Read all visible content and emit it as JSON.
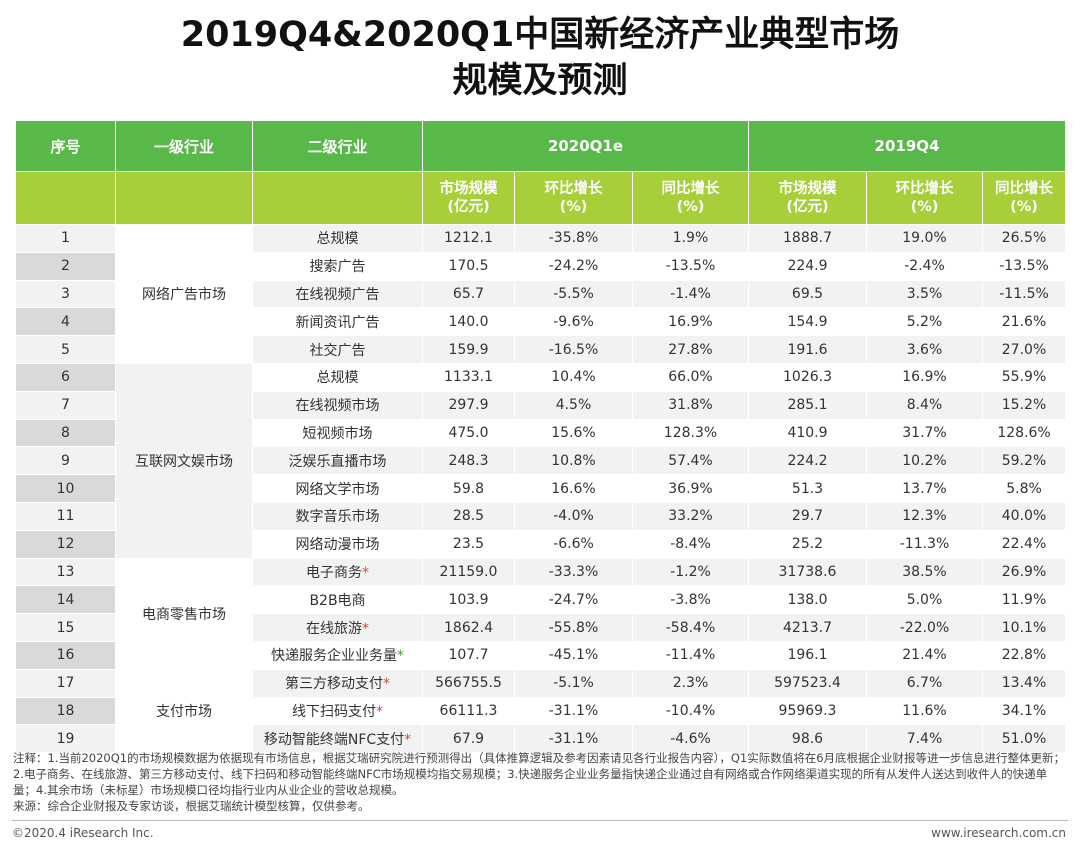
{
  "title": {
    "line1": "2019Q4&2020Q1中国新经济产业典型市场",
    "line2": "规模及预测"
  },
  "header": {
    "col_index": "序号",
    "col_level1": "一级行业",
    "col_level2": "二级行业",
    "group_2020": "2020Q1e",
    "group_2019": "2019Q4",
    "size_l1": "市场规模",
    "size_l2": "(亿元)",
    "qoq_l1": "环比增长",
    "qoq_l2": "(%)",
    "yoy_l1": "同比增长",
    "yoy_l2": "(%)"
  },
  "rows": [
    {
      "idx": "1",
      "level1": "网络广告市场",
      "level2": "总规模",
      "star": "",
      "s20": "1212.1",
      "q20": "-35.8%",
      "y20": "1.9%",
      "s19": "1888.7",
      "q19": "19.0%",
      "y19": "26.5%"
    },
    {
      "idx": "2",
      "level1": "",
      "level2": "搜索广告",
      "star": "",
      "s20": "170.5",
      "q20": "-24.2%",
      "y20": "-13.5%",
      "s19": "224.9",
      "q19": "-2.4%",
      "y19": "-13.5%"
    },
    {
      "idx": "3",
      "level1": "",
      "level2": "在线视频广告",
      "star": "",
      "s20": "65.7",
      "q20": "-5.5%",
      "y20": "-1.4%",
      "s19": "69.5",
      "q19": "3.5%",
      "y19": "-11.5%"
    },
    {
      "idx": "4",
      "level1": "",
      "level2": "新闻资讯广告",
      "star": "",
      "s20": "140.0",
      "q20": "-9.6%",
      "y20": "16.9%",
      "s19": "154.9",
      "q19": "5.2%",
      "y19": "21.6%"
    },
    {
      "idx": "5",
      "level1": "",
      "level2": "社交广告",
      "star": "",
      "s20": "159.9",
      "q20": "-16.5%",
      "y20": "27.8%",
      "s19": "191.6",
      "q19": "3.6%",
      "y19": "27.0%"
    },
    {
      "idx": "6",
      "level1": "互联网文娱市场",
      "level2": "总规模",
      "star": "",
      "s20": "1133.1",
      "q20": "10.4%",
      "y20": "66.0%",
      "s19": "1026.3",
      "q19": "16.9%",
      "y19": "55.9%"
    },
    {
      "idx": "7",
      "level1": "",
      "level2": "在线视频市场",
      "star": "",
      "s20": "297.9",
      "q20": "4.5%",
      "y20": "31.8%",
      "s19": "285.1",
      "q19": "8.4%",
      "y19": "15.2%"
    },
    {
      "idx": "8",
      "level1": "",
      "level2": "短视频市场",
      "star": "",
      "s20": "475.0",
      "q20": "15.6%",
      "y20": "128.3%",
      "s19": "410.9",
      "q19": "31.7%",
      "y19": "128.6%"
    },
    {
      "idx": "9",
      "level1": "",
      "level2": "泛娱乐直播市场",
      "star": "",
      "s20": "248.3",
      "q20": "10.8%",
      "y20": "57.4%",
      "s19": "224.2",
      "q19": "10.2%",
      "y19": "59.2%"
    },
    {
      "idx": "10",
      "level1": "",
      "level2": "网络文学市场",
      "star": "",
      "s20": "59.8",
      "q20": "16.6%",
      "y20": "36.9%",
      "s19": "51.3",
      "q19": "13.7%",
      "y19": "5.8%"
    },
    {
      "idx": "11",
      "level1": "",
      "level2": "数字音乐市场",
      "star": "",
      "s20": "28.5",
      "q20": "-4.0%",
      "y20": "33.2%",
      "s19": "29.7",
      "q19": "12.3%",
      "y19": "40.0%"
    },
    {
      "idx": "12",
      "level1": "",
      "level2": "网络动漫市场",
      "star": "",
      "s20": "23.5",
      "q20": "-6.6%",
      "y20": "-8.4%",
      "s19": "25.2",
      "q19": "-11.3%",
      "y19": "22.4%"
    },
    {
      "idx": "13",
      "level1": "电商零售市场",
      "level2": "电子商务",
      "star": "red",
      "s20": "21159.0",
      "q20": "-33.3%",
      "y20": "-1.2%",
      "s19": "31738.6",
      "q19": "38.5%",
      "y19": "26.9%"
    },
    {
      "idx": "14",
      "level1": "",
      "level2": "B2B电商",
      "star": "",
      "s20": "103.9",
      "q20": "-24.7%",
      "y20": "-3.8%",
      "s19": "138.0",
      "q19": "5.0%",
      "y19": "11.9%"
    },
    {
      "idx": "15",
      "level1": "",
      "level2": "在线旅游",
      "star": "red",
      "s20": "1862.4",
      "q20": "-55.8%",
      "y20": "-58.4%",
      "s19": "4213.7",
      "q19": "-22.0%",
      "y19": "10.1%"
    },
    {
      "idx": "16",
      "level1": "",
      "level2": "快递服务企业业务量",
      "star": "green",
      "s20": "107.7",
      "q20": "-45.1%",
      "y20": "-11.4%",
      "s19": "196.1",
      "q19": "21.4%",
      "y19": "22.8%"
    },
    {
      "idx": "17",
      "level1": "支付市场",
      "level2": "第三方移动支付",
      "star": "red",
      "s20": "566755.5",
      "q20": "-5.1%",
      "y20": "2.3%",
      "s19": "597523.4",
      "q19": "6.7%",
      "y19": "13.4%"
    },
    {
      "idx": "18",
      "level1": "",
      "level2": "线下扫码支付",
      "star": "red",
      "s20": "66111.3",
      "q20": "-31.1%",
      "y20": "-10.4%",
      "s19": "95969.3",
      "q19": "11.6%",
      "y19": "34.1%"
    },
    {
      "idx": "19",
      "level1": "",
      "level2": "移动智能终端NFC支付",
      "star": "red",
      "s20": "67.9",
      "q20": "-31.1%",
      "y20": "-4.6%",
      "s19": "98.6",
      "q19": "7.4%",
      "y19": "51.0%"
    }
  ],
  "segments": [
    {
      "label": "网络广告市场",
      "start": 0,
      "span": 5
    },
    {
      "label": "互联网文娱市场",
      "start": 5,
      "span": 7
    },
    {
      "label": "电商零售市场",
      "start": 12,
      "span": 4
    },
    {
      "label": "支付市场",
      "start": 16,
      "span": 3
    }
  ],
  "star_symbol": "*",
  "colors": {
    "header_dark_green": "#58b848",
    "header_light_green": "#a6cf3a",
    "star_red": "#e0453c",
    "star_green": "#3aa63a"
  },
  "notes": {
    "line1": "注释：1.当前2020Q1的市场规模数据为依据现有市场信息，根据艾瑞研究院进行预测得出（具体推算逻辑及参考因素请见各行业报告内容），Q1实际数值将在6月底根据企业财报等进一步信息进行整体更新；2.电子商务、在线旅游、第三方移动支付、线下扫码和移动智能终端NFC市场规模均指交易规模；3.快递服务企业业务量指快递企业通过自有网络或合作网络渠道实现的所有从发件人送达到收件人的快递单量；4.其余市场（未标星）市场规模口径均指行业内从业企业的营收总规模。",
    "line2": "来源：综合企业财报及专家访谈，根据艾瑞统计模型核算，仅供参考。"
  },
  "footer": {
    "copyright": "©2020.4 iResearch Inc.",
    "website": "www.iresearch.com.cn"
  }
}
